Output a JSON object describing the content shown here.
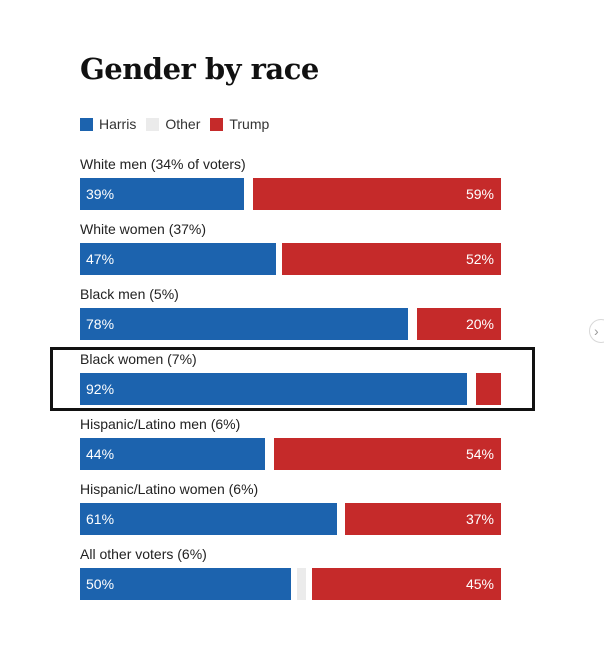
{
  "chart_data": {
    "type": "bar",
    "title": "Gender by race",
    "legend": [
      "Harris",
      "Other",
      "Trump"
    ],
    "colors": {
      "Harris": "#1c63ae",
      "Other": "#ebebeb",
      "Trump": "#c52a2a"
    },
    "categories": [
      "White men (34% of voters)",
      "White women (37%)",
      "Black men (5%)",
      "Black women (7%)",
      "Hispanic/Latino men (6%)",
      "Hispanic/Latino women (6%)",
      "All other voters (6%)"
    ],
    "series": [
      {
        "name": "Harris",
        "values": [
          39,
          47,
          78,
          92,
          44,
          61,
          50
        ],
        "labels": [
          "39%",
          "47%",
          "78%",
          "92%",
          "44%",
          "61%",
          "50%"
        ]
      },
      {
        "name": "Trump",
        "values": [
          59,
          52,
          20,
          6,
          54,
          37,
          45
        ],
        "labels": [
          "59%",
          "52%",
          "20%",
          "",
          "54%",
          "37%",
          "45%"
        ]
      }
    ],
    "highlighted_category": "Black women (7%)",
    "xlim": [
      0,
      100
    ]
  }
}
